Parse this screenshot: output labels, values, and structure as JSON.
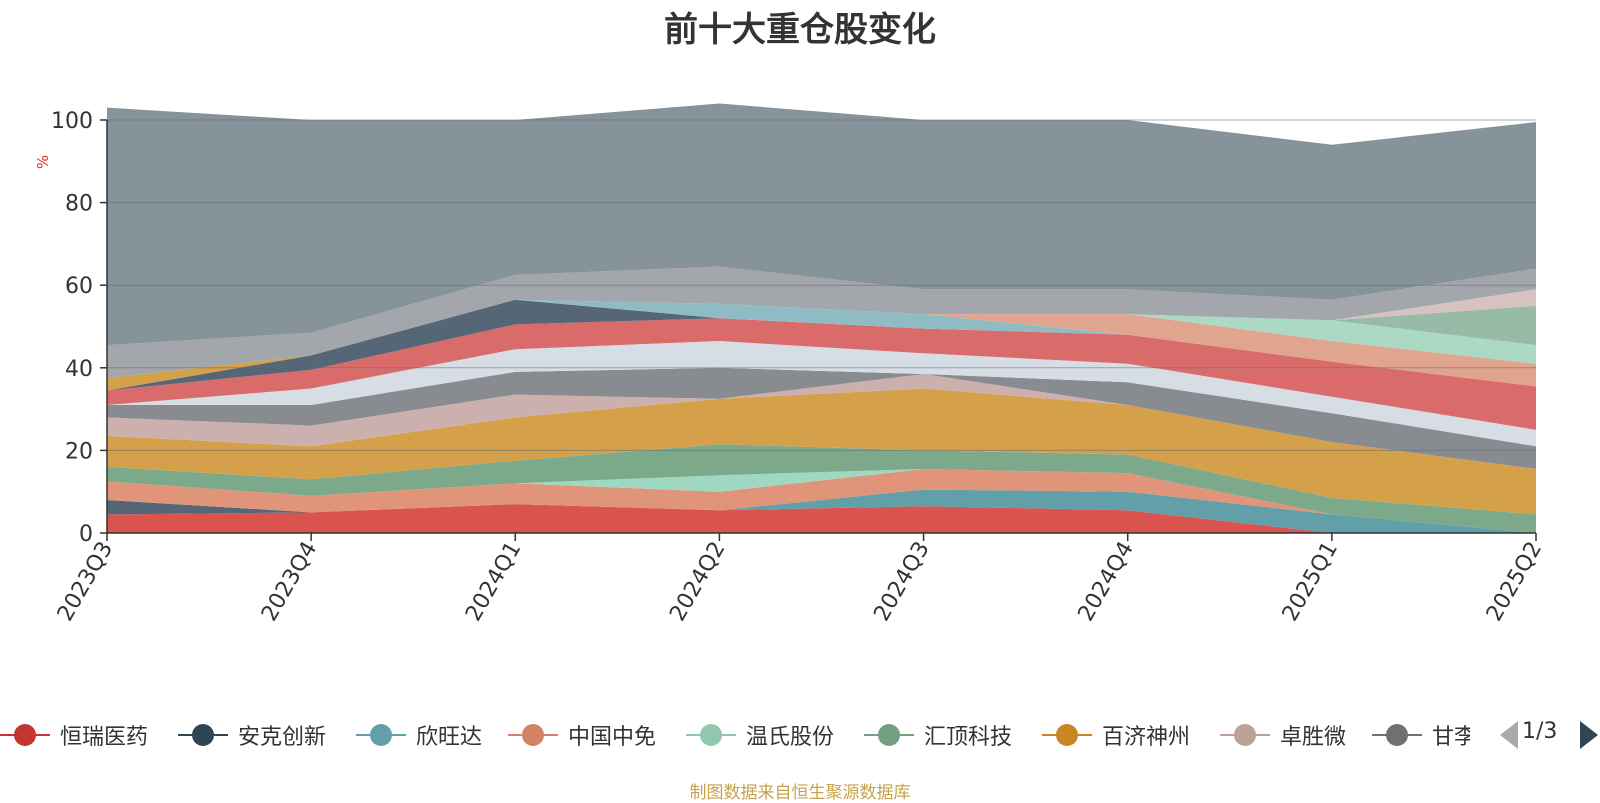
{
  "title": "前十大重仓股变化",
  "footer": "制图数据来自恒生聚源数据库",
  "pager": {
    "text": "1/3"
  },
  "chart_data": {
    "type": "area",
    "stacked": true,
    "ylabel": "%",
    "ylim": [
      0,
      100
    ],
    "yticks": [
      "0",
      "20",
      "40",
      "60",
      "80",
      "100"
    ],
    "categories": [
      "2023Q3",
      "2023Q4",
      "2024Q1",
      "2024Q2",
      "2024Q3",
      "2024Q4",
      "2025Q1",
      "2025Q2"
    ],
    "series": [
      {
        "name": "恒瑞医药",
        "color": "#d9534f",
        "values": [
          4.5,
          5.0,
          7.0,
          5.5,
          6.5,
          5.5,
          0.0,
          0.0
        ]
      },
      {
        "name": "安克创新",
        "color": "#556677",
        "values": [
          3.5,
          0.0,
          0.0,
          0.0,
          0.0,
          0.0,
          0.0,
          0.0
        ]
      },
      {
        "name": "欣旺达",
        "color": "#61a0a8",
        "values": [
          0.0,
          0.0,
          0.0,
          0.0,
          4.0,
          4.5,
          4.5,
          0.0
        ]
      },
      {
        "name": "中国中免",
        "color": "#e0957a",
        "values": [
          4.5,
          4.0,
          5.0,
          4.5,
          5.0,
          4.5,
          0.0,
          0.0
        ]
      },
      {
        "name": "温氏股份",
        "color": "#9fd8c0",
        "values": [
          0.0,
          0.0,
          0.0,
          4.0,
          0.0,
          0.0,
          0.0,
          0.0
        ]
      },
      {
        "name": "汇顶科技",
        "color": "#7ba98a",
        "values": [
          3.5,
          4.0,
          5.5,
          7.5,
          4.5,
          4.5,
          4.0,
          4.5
        ]
      },
      {
        "name": "百济神州",
        "color": "#d4a04a",
        "values": [
          7.5,
          8.0,
          10.5,
          11.0,
          15.0,
          12.0,
          13.5,
          11.0
        ]
      },
      {
        "name": "卓胜微",
        "color": "#ccb0ad",
        "values": [
          4.5,
          5.0,
          5.5,
          0.0,
          3.5,
          0.0,
          0.0,
          0.0
        ]
      },
      {
        "name": "甘李药业",
        "color": "#888c90",
        "values": [
          3.0,
          5.0,
          5.5,
          7.5,
          0.0,
          5.5,
          7.0,
          5.5
        ]
      },
      {
        "name": "",
        "color": "#d7dde4",
        "values": [
          0.0,
          4.0,
          5.5,
          6.5,
          5.0,
          4.5,
          4.0,
          4.0
        ]
      },
      {
        "name": "",
        "color": "#d96b6b",
        "values": [
          3.5,
          4.5,
          6.0,
          5.5,
          6.0,
          7.0,
          8.5,
          10.5
        ]
      },
      {
        "name": "",
        "color": "#556677",
        "values": [
          0.0,
          3.5,
          6.0,
          0.0,
          0.0,
          0.0,
          0.0,
          0.0
        ]
      },
      {
        "name": "",
        "color": "#d4a04a",
        "values": [
          3.0,
          0.0,
          0.0,
          0.0,
          0.0,
          0.0,
          0.0,
          0.0
        ]
      },
      {
        "name": "",
        "color": "#8fbcc4",
        "values": [
          0.0,
          0.0,
          0.0,
          3.5,
          3.5,
          0.0,
          0.0,
          0.0
        ]
      },
      {
        "name": "",
        "color": "#e0a58e",
        "values": [
          0.0,
          0.0,
          0.0,
          0.0,
          0.0,
          5.0,
          5.0,
          5.5
        ]
      },
      {
        "name": "",
        "color": "#acd9c4",
        "values": [
          0.0,
          0.0,
          0.0,
          0.0,
          0.0,
          0.0,
          5.0,
          4.5
        ]
      },
      {
        "name": "",
        "color": "#97bba6",
        "values": [
          0.0,
          0.0,
          0.0,
          0.0,
          0.0,
          0.0,
          0.0,
          9.5
        ]
      },
      {
        "name": "",
        "color": "#d6c2c0",
        "values": [
          0.0,
          0.0,
          0.0,
          0.0,
          0.0,
          0.0,
          0.0,
          4.0
        ]
      },
      {
        "name": "",
        "color": "#a3a6aa",
        "values": [
          8.0,
          5.5,
          6.0,
          9.0,
          6.0,
          6.0,
          5.0,
          5.0
        ]
      },
      {
        "name": "",
        "color": "#86939a",
        "values": [
          57.5,
          51.5,
          37.5,
          39.5,
          41.0,
          41.0,
          37.5,
          35.5
        ]
      }
    ],
    "legend": {
      "position": "bottom",
      "items": [
        {
          "name": "恒瑞医药",
          "color": "#c23531"
        },
        {
          "name": "安克创新",
          "color": "#2f4554"
        },
        {
          "name": "欣旺达",
          "color": "#61a0a8"
        },
        {
          "name": "中国中免",
          "color": "#d48265"
        },
        {
          "name": "温氏股份",
          "color": "#91c7ae"
        },
        {
          "name": "汇顶科技",
          "color": "#749f83"
        },
        {
          "name": "百济神州",
          "color": "#ca8622"
        },
        {
          "name": "卓胜微",
          "color": "#bda29a"
        },
        {
          "name": "甘李药业",
          "color": "#6e7074"
        }
      ]
    },
    "grid": true
  }
}
